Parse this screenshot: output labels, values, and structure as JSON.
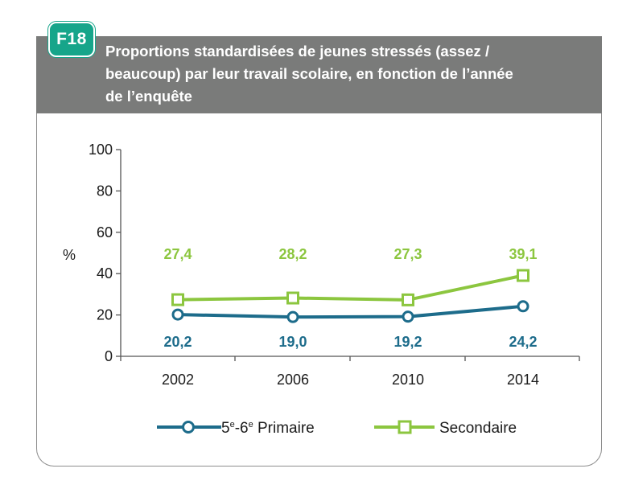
{
  "badge": "F18",
  "title_lines": [
    "Proportions standardisées de jeunes stressés (assez /",
    "beaucoup) par leur travail scolaire, en fonction de l’année",
    "de l’enquête"
  ],
  "colors": {
    "header_bg": "#7a7b7a",
    "badge_bg": "#16a58a",
    "primary": "#1d6c8b",
    "secondary": "#8cc63f"
  },
  "chart_data": {
    "type": "line",
    "title": "Proportions standardisées de jeunes stressés (assez / beaucoup) par leur travail scolaire, en fonction de l’année de l’enquête",
    "ylabel": "%",
    "xlabel": "",
    "categories": [
      "2002",
      "2006",
      "2010",
      "2014"
    ],
    "ylim": [
      0,
      100
    ],
    "yticks": [
      0,
      20,
      40,
      60,
      80,
      100
    ],
    "grid": false,
    "legend_position": "bottom",
    "series": [
      {
        "name": "5e-6e Primaire",
        "name_base": "5",
        "name_sup1": "e",
        "name_mid": "-6",
        "name_sup2": "e",
        "name_rest": " Primaire",
        "marker": "circle",
        "color": "#1d6c8b",
        "values": [
          20.2,
          19.0,
          19.2,
          24.2
        ],
        "labels": [
          "20,2",
          "19,0",
          "19,2",
          "24,2"
        ]
      },
      {
        "name": "Secondaire",
        "marker": "square",
        "color": "#8cc63f",
        "values": [
          27.4,
          28.2,
          27.3,
          39.1
        ],
        "labels": [
          "27,4",
          "28,2",
          "27,3",
          "39,1"
        ]
      }
    ]
  }
}
